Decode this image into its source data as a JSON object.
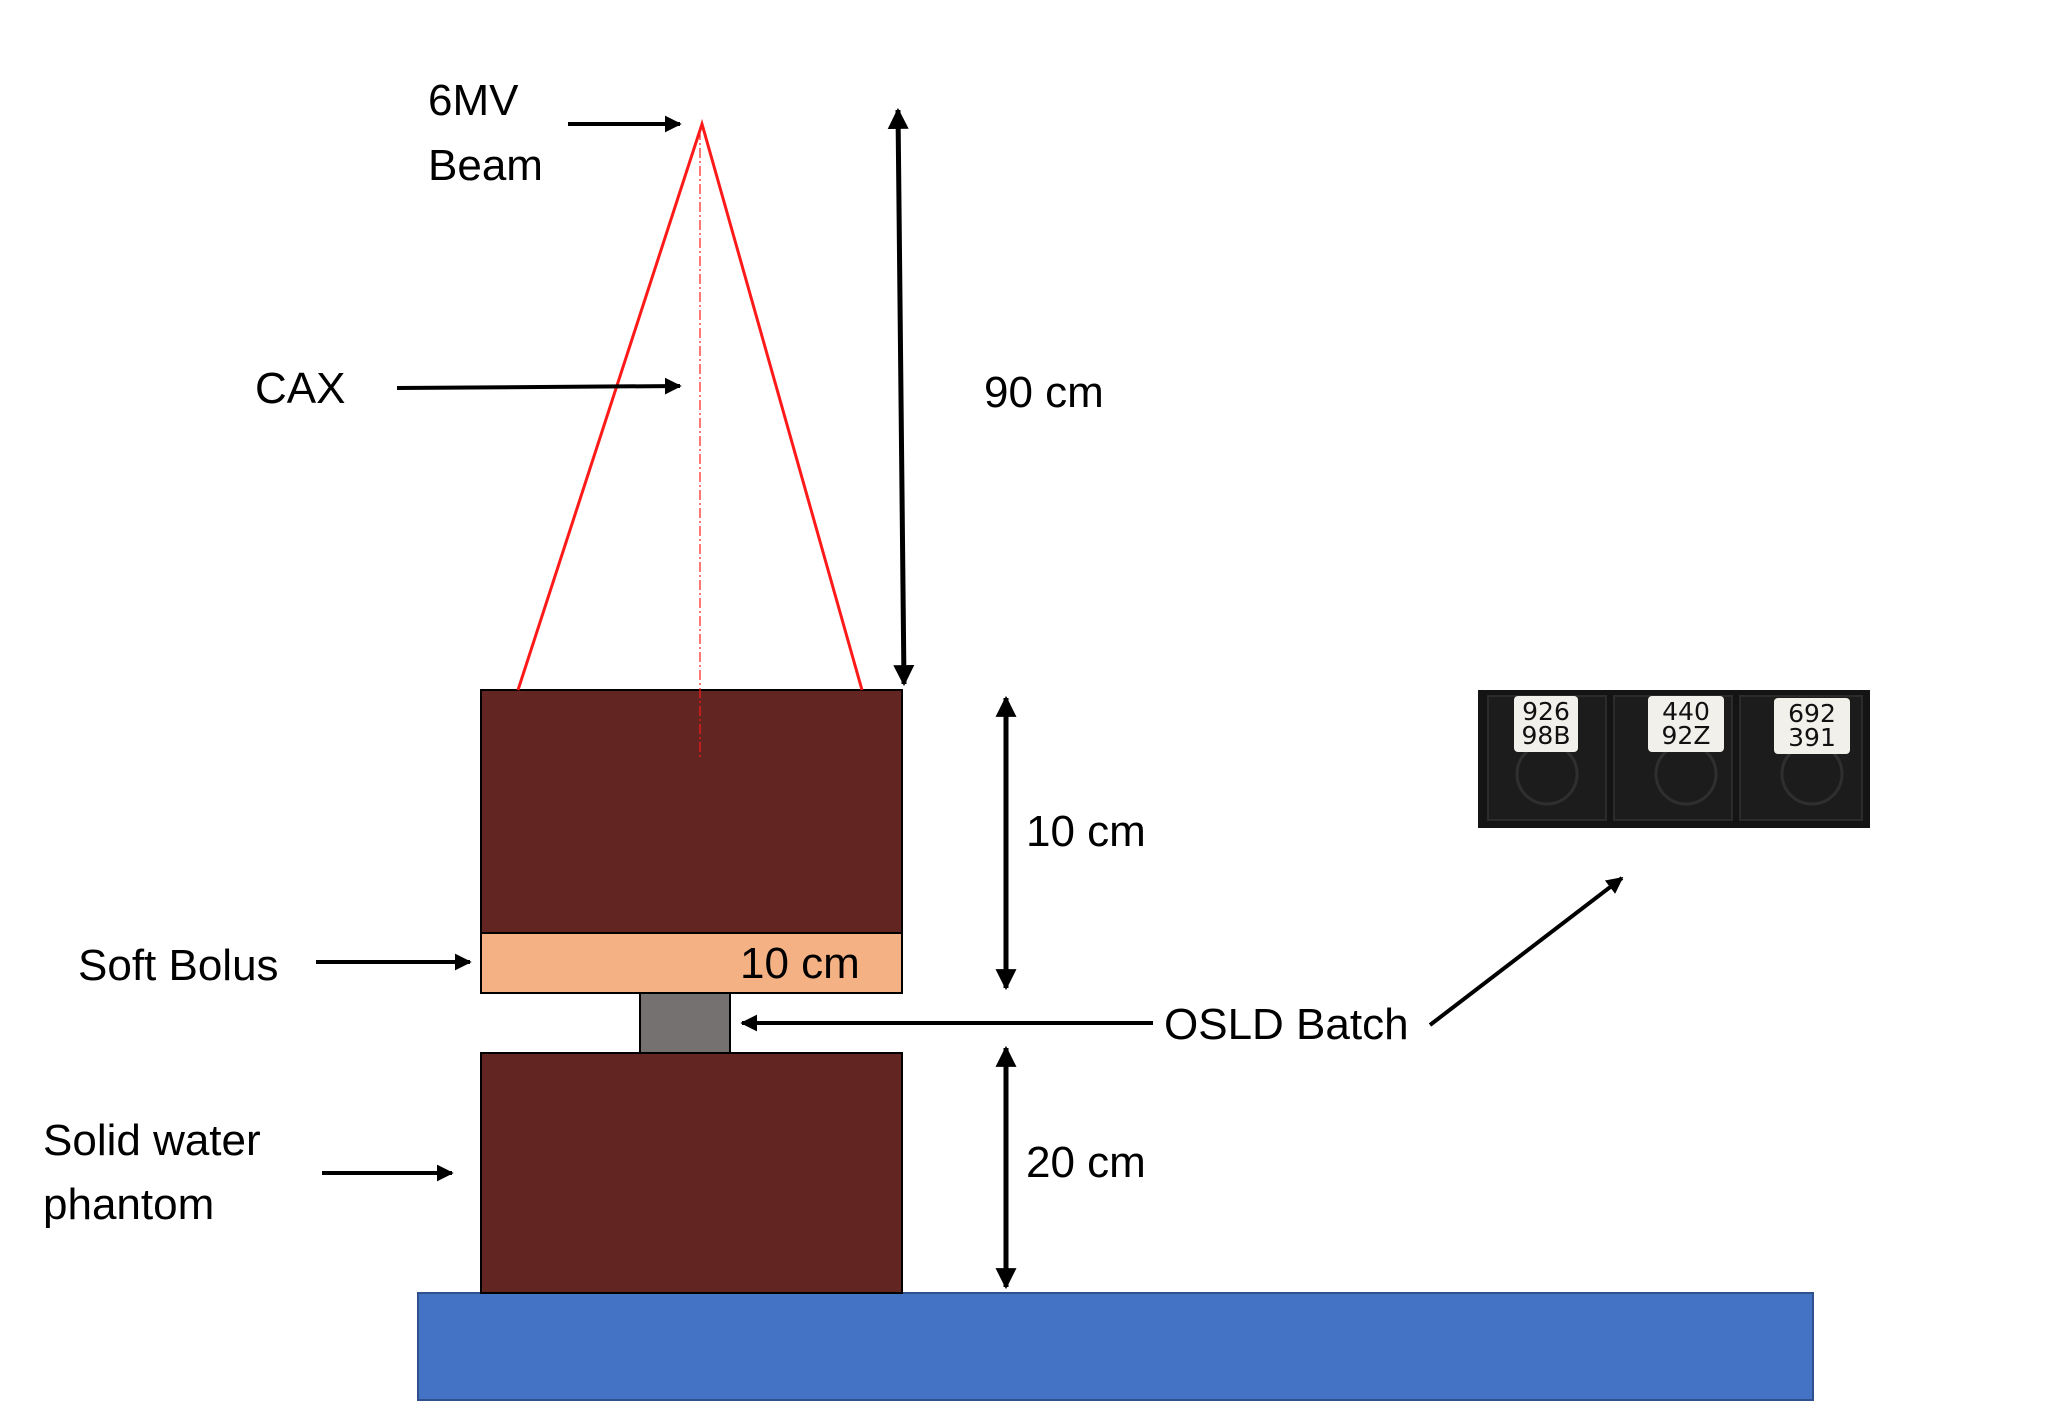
{
  "labels": {
    "beam_line1": "6MV",
    "beam_line2": "Beam",
    "cax": "CAX",
    "dist_90": "90 cm",
    "dist_10_upper": "10 cm",
    "bolus_inner": "10 cm",
    "soft_bolus": "Soft Bolus",
    "osld_batch": "OSLD Batch",
    "dist_20": "20 cm",
    "phantom_line1": "Solid water",
    "phantom_line2": "phantom"
  },
  "osld_photo": {
    "chips": [
      {
        "line1": "926",
        "line2": "98B"
      },
      {
        "line1": "440",
        "line2": "92Z"
      },
      {
        "line1": "692",
        "line2": "391"
      }
    ]
  },
  "colors": {
    "beam": "#ff1a1a",
    "phantom": "#632522",
    "bolus": "#f4b183",
    "osld": "#767171",
    "table": "#4472c4",
    "arrows": "#000000",
    "photo_bg": "#141414",
    "chip_label": "#f2f0ea"
  }
}
